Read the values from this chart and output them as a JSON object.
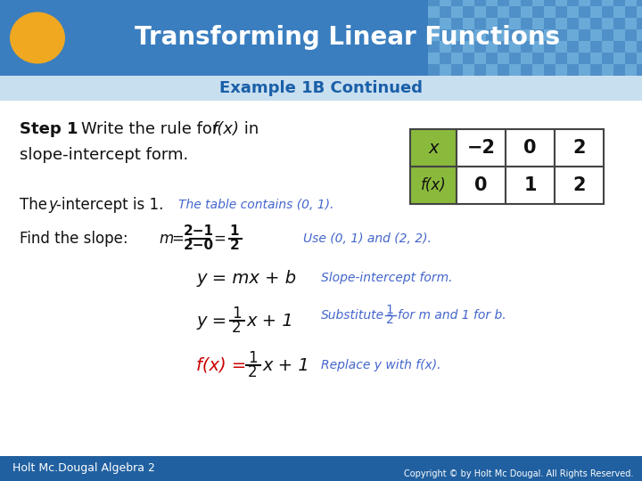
{
  "title": "Transforming Linear Functions",
  "subtitle": "Example 1B Continued",
  "header_bg": "#3a7ebf",
  "header_text_color": "#ffffff",
  "slide_bg": "#f0f4f8",
  "oval_color": "#f0a820",
  "subtitle_color": "#1a5fa8",
  "subtitle_bg": "#c8dff0",
  "table_header_bg": "#8aba3c",
  "table_border_color": "#444444",
  "table_x_vals": [
    "−2",
    "0",
    "2"
  ],
  "table_fx_vals": [
    "0",
    "1",
    "2"
  ],
  "note_color": "#4466cc",
  "footer_bg": "#2060a0",
  "footer_left": "Holt Mc.Dougal Algebra 2",
  "footer_right": "Copyright © by Holt Mc Dougal. All Rights Reserved.",
  "footer_text_color": "#ffffff",
  "red_color": "#cc0000",
  "black_color": "#111111",
  "grid_color1": "#5090c8",
  "grid_color2": "#6aaad8"
}
